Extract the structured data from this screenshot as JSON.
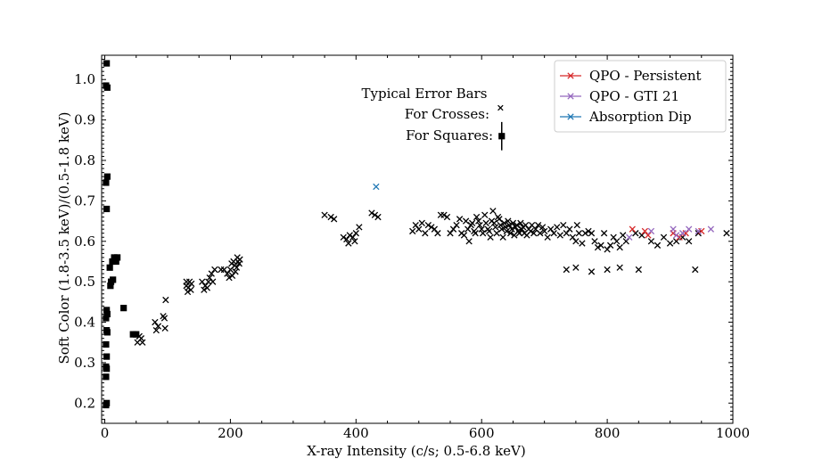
{
  "chart_data": {
    "type": "scatter",
    "xlabel": "X-ray Intensity (c/s; 0.5-6.8 keV)",
    "ylabel": "Soft Color (1.8-3.5 keV)/(0.5-1.8 keV)",
    "xlim": [
      -5,
      1000
    ],
    "ylim": [
      0.15,
      1.06
    ],
    "xticks": [
      0,
      200,
      400,
      600,
      800,
      1000
    ],
    "yticks": [
      0.2,
      0.3,
      0.4,
      0.5,
      0.6,
      0.7,
      0.8,
      0.9,
      1.0
    ],
    "xtick_labels": [
      "0",
      "200",
      "400",
      "600",
      "800",
      "1000"
    ],
    "ytick_labels": [
      "0.2",
      "0.3",
      "0.4",
      "0.5",
      "0.6",
      "0.7",
      "0.8",
      "0.9",
      "1.0"
    ],
    "legend_position": "top-right",
    "legend": [
      {
        "label": "QPO - Persistent",
        "color": "#d62728",
        "marker": "x"
      },
      {
        "label": "QPO - GTI 21",
        "color": "#9467bd",
        "marker": "x"
      },
      {
        "label": "Absorption Dip",
        "color": "#1f77b4",
        "marker": "x"
      }
    ],
    "annotations": {
      "title": "Typical Error Bars",
      "crosses_label": "For Crosses:",
      "squares_label": "For Squares:",
      "cross_marker": [
        630,
        0.93
      ],
      "square_marker": [
        632,
        0.86
      ],
      "square_error": 0.035
    },
    "series": [
      {
        "name": "Squares",
        "marker": "square",
        "color": "#000000",
        "points": [
          [
            3,
            1.04
          ],
          [
            2,
            0.985
          ],
          [
            4,
            0.98
          ],
          [
            4,
            0.76
          ],
          [
            2,
            0.745
          ],
          [
            3,
            0.68
          ],
          [
            15,
            0.56
          ],
          [
            18,
            0.55
          ],
          [
            20,
            0.56
          ],
          [
            12,
            0.55
          ],
          [
            8,
            0.535
          ],
          [
            10,
            0.5
          ],
          [
            13,
            0.505
          ],
          [
            9,
            0.49
          ],
          [
            3,
            0.43
          ],
          [
            4,
            0.42
          ],
          [
            2,
            0.41
          ],
          [
            30,
            0.435
          ],
          [
            45,
            0.37
          ],
          [
            50,
            0.37
          ],
          [
            3,
            0.38
          ],
          [
            4,
            0.375
          ],
          [
            2,
            0.345
          ],
          [
            3,
            0.315
          ],
          [
            2,
            0.29
          ],
          [
            3,
            0.285
          ],
          [
            2,
            0.265
          ],
          [
            3,
            0.2
          ],
          [
            2,
            0.195
          ]
        ]
      },
      {
        "name": "Crosses",
        "marker": "x",
        "color": "#000000",
        "points": [
          [
            55,
            0.365
          ],
          [
            52,
            0.35
          ],
          [
            58,
            0.36
          ],
          [
            60,
            0.35
          ],
          [
            80,
            0.4
          ],
          [
            82,
            0.38
          ],
          [
            85,
            0.39
          ],
          [
            95,
            0.41
          ],
          [
            96,
            0.385
          ],
          [
            97,
            0.455
          ],
          [
            93,
            0.415
          ],
          [
            130,
            0.49
          ],
          [
            132,
            0.475
          ],
          [
            135,
            0.5
          ],
          [
            133,
            0.485
          ],
          [
            138,
            0.495
          ],
          [
            130,
            0.5
          ],
          [
            137,
            0.48
          ],
          [
            155,
            0.5
          ],
          [
            158,
            0.48
          ],
          [
            160,
            0.49
          ],
          [
            165,
            0.5
          ],
          [
            167,
            0.51
          ],
          [
            170,
            0.52
          ],
          [
            172,
            0.5
          ],
          [
            175,
            0.53
          ],
          [
            163,
            0.485
          ],
          [
            185,
            0.53
          ],
          [
            190,
            0.53
          ],
          [
            195,
            0.52
          ],
          [
            200,
            0.53
          ],
          [
            202,
            0.545
          ],
          [
            205,
            0.55
          ],
          [
            207,
            0.54
          ],
          [
            210,
            0.535
          ],
          [
            212,
            0.55
          ],
          [
            215,
            0.555
          ],
          [
            208,
            0.525
          ],
          [
            203,
            0.515
          ],
          [
            198,
            0.51
          ],
          [
            211,
            0.56
          ],
          [
            214,
            0.545
          ],
          [
            350,
            0.665
          ],
          [
            360,
            0.66
          ],
          [
            365,
            0.655
          ],
          [
            380,
            0.61
          ],
          [
            385,
            0.605
          ],
          [
            390,
            0.615
          ],
          [
            395,
            0.61
          ],
          [
            398,
            0.6
          ],
          [
            400,
            0.62
          ],
          [
            405,
            0.635
          ],
          [
            388,
            0.595
          ],
          [
            425,
            0.67
          ],
          [
            430,
            0.665
          ],
          [
            435,
            0.66
          ],
          [
            490,
            0.625
          ],
          [
            495,
            0.64
          ],
          [
            500,
            0.63
          ],
          [
            505,
            0.645
          ],
          [
            510,
            0.62
          ],
          [
            515,
            0.64
          ],
          [
            520,
            0.635
          ],
          [
            525,
            0.63
          ],
          [
            530,
            0.62
          ],
          [
            535,
            0.665
          ],
          [
            540,
            0.665
          ],
          [
            545,
            0.66
          ],
          [
            550,
            0.62
          ],
          [
            555,
            0.63
          ],
          [
            560,
            0.64
          ],
          [
            565,
            0.655
          ],
          [
            568,
            0.62
          ],
          [
            572,
            0.615
          ],
          [
            575,
            0.65
          ],
          [
            578,
            0.63
          ],
          [
            580,
            0.6
          ],
          [
            583,
            0.64
          ],
          [
            585,
            0.645
          ],
          [
            588,
            0.625
          ],
          [
            590,
            0.62
          ],
          [
            592,
            0.66
          ],
          [
            595,
            0.65
          ],
          [
            597,
            0.64
          ],
          [
            600,
            0.63
          ],
          [
            602,
            0.62
          ],
          [
            605,
            0.665
          ],
          [
            607,
            0.645
          ],
          [
            610,
            0.63
          ],
          [
            612,
            0.625
          ],
          [
            614,
            0.61
          ],
          [
            616,
            0.65
          ],
          [
            618,
            0.675
          ],
          [
            620,
            0.645
          ],
          [
            622,
            0.635
          ],
          [
            624,
            0.62
          ],
          [
            626,
            0.66
          ],
          [
            628,
            0.655
          ],
          [
            630,
            0.64
          ],
          [
            632,
            0.63
          ],
          [
            634,
            0.61
          ],
          [
            636,
            0.645
          ],
          [
            638,
            0.635
          ],
          [
            640,
            0.625
          ],
          [
            642,
            0.65
          ],
          [
            644,
            0.64
          ],
          [
            646,
            0.62
          ],
          [
            648,
            0.63
          ],
          [
            650,
            0.645
          ],
          [
            652,
            0.615
          ],
          [
            654,
            0.635
          ],
          [
            656,
            0.64
          ],
          [
            658,
            0.625
          ],
          [
            660,
            0.62
          ],
          [
            662,
            0.645
          ],
          [
            664,
            0.63
          ],
          [
            666,
            0.635
          ],
          [
            668,
            0.62
          ],
          [
            670,
            0.64
          ],
          [
            672,
            0.615
          ],
          [
            675,
            0.63
          ],
          [
            678,
            0.625
          ],
          [
            680,
            0.64
          ],
          [
            683,
            0.62
          ],
          [
            686,
            0.63
          ],
          [
            690,
            0.64
          ],
          [
            693,
            0.62
          ],
          [
            697,
            0.635
          ],
          [
            700,
            0.625
          ],
          [
            705,
            0.61
          ],
          [
            710,
            0.63
          ],
          [
            715,
            0.62
          ],
          [
            720,
            0.635
          ],
          [
            725,
            0.615
          ],
          [
            730,
            0.64
          ],
          [
            735,
            0.62
          ],
          [
            740,
            0.63
          ],
          [
            745,
            0.61
          ],
          [
            750,
            0.6
          ],
          [
            752,
            0.64
          ],
          [
            755,
            0.62
          ],
          [
            760,
            0.595
          ],
          [
            765,
            0.62
          ],
          [
            770,
            0.625
          ],
          [
            775,
            0.62
          ],
          [
            780,
            0.6
          ],
          [
            785,
            0.585
          ],
          [
            790,
            0.59
          ],
          [
            795,
            0.62
          ],
          [
            800,
            0.58
          ],
          [
            805,
            0.59
          ],
          [
            810,
            0.61
          ],
          [
            815,
            0.6
          ],
          [
            820,
            0.585
          ],
          [
            825,
            0.615
          ],
          [
            830,
            0.6
          ],
          [
            845,
            0.62
          ],
          [
            855,
            0.615
          ],
          [
            870,
            0.6
          ],
          [
            880,
            0.59
          ],
          [
            890,
            0.61
          ],
          [
            900,
            0.595
          ],
          [
            910,
            0.6
          ],
          [
            920,
            0.61
          ],
          [
            930,
            0.6
          ],
          [
            945,
            0.62
          ],
          [
            990,
            0.62
          ],
          [
            735,
            0.53
          ],
          [
            750,
            0.535
          ],
          [
            775,
            0.525
          ],
          [
            800,
            0.53
          ],
          [
            820,
            0.535
          ],
          [
            850,
            0.53
          ],
          [
            940,
            0.53
          ]
        ]
      },
      {
        "name": "QPO - Persistent",
        "marker": "x",
        "color": "#d62728",
        "points": [
          [
            840,
            0.63
          ],
          [
            860,
            0.625
          ],
          [
            865,
            0.615
          ],
          [
            905,
            0.62
          ],
          [
            915,
            0.61
          ],
          [
            925,
            0.62
          ],
          [
            950,
            0.625
          ]
        ]
      },
      {
        "name": "QPO - GTI 21",
        "marker": "x",
        "color": "#9467bd",
        "points": [
          [
            835,
            0.61
          ],
          [
            870,
            0.625
          ],
          [
            905,
            0.63
          ],
          [
            910,
            0.615
          ],
          [
            920,
            0.62
          ],
          [
            930,
            0.63
          ],
          [
            945,
            0.625
          ],
          [
            965,
            0.63
          ]
        ]
      },
      {
        "name": "Absorption Dip",
        "marker": "x",
        "color": "#1f77b4",
        "points": [
          [
            432,
            0.735
          ]
        ]
      }
    ]
  }
}
